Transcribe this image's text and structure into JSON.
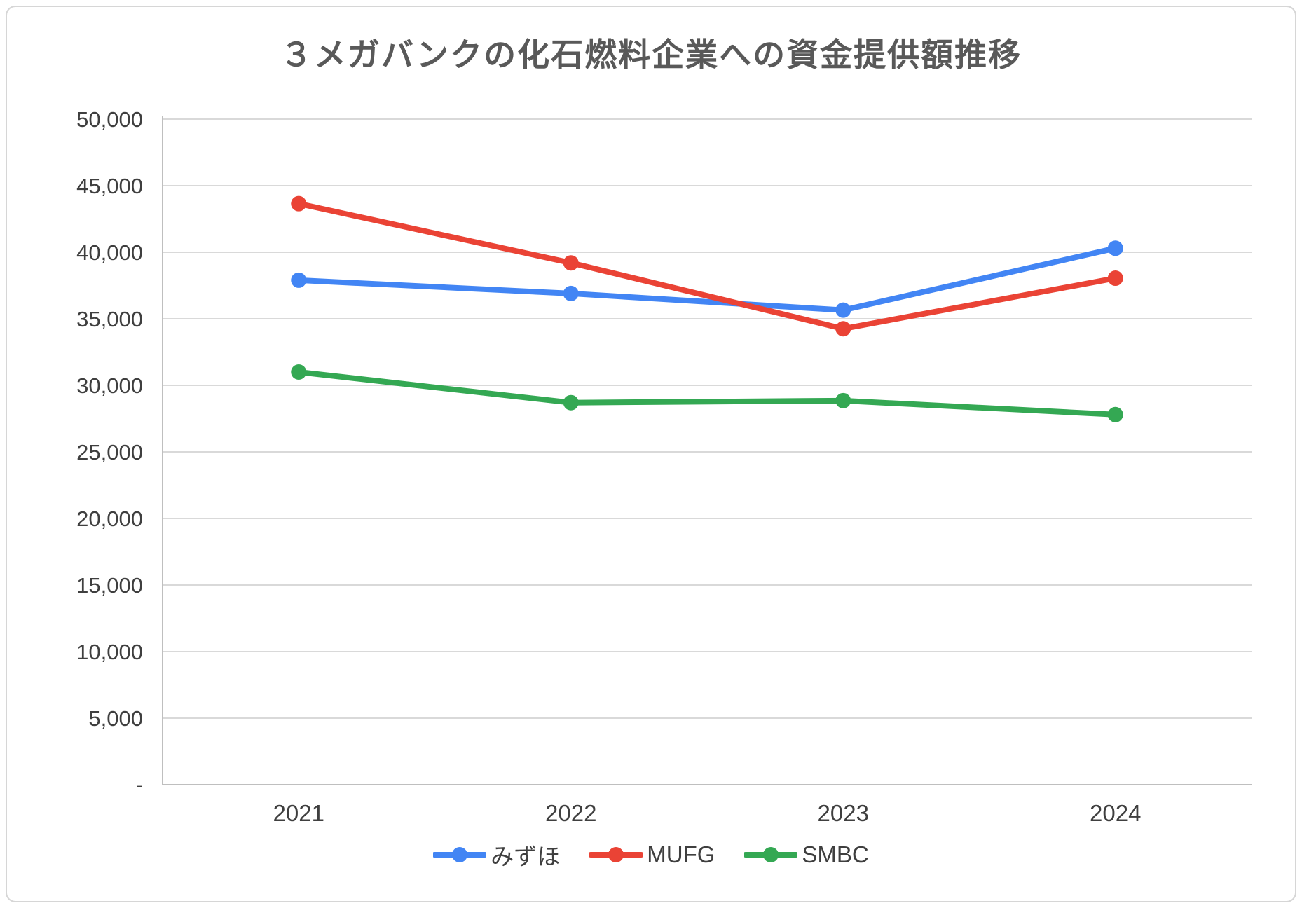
{
  "chart_data": {
    "type": "line",
    "title": "３メガバンクの化石燃料企業への資金提供額推移",
    "categories": [
      "2021",
      "2022",
      "2023",
      "2024"
    ],
    "series": [
      {
        "name": "みずほ",
        "color": "#4285F4",
        "values": [
          37900,
          36900,
          35650,
          40300
        ]
      },
      {
        "name": "MUFG",
        "color": "#EA4335",
        "values": [
          43650,
          39200,
          34250,
          38050
        ]
      },
      {
        "name": "SMBC",
        "color": "#34A853",
        "values": [
          31000,
          28700,
          28850,
          27800
        ]
      }
    ],
    "ylim": [
      0,
      50000
    ],
    "ytick_step": 5000,
    "ytick_labels": [
      "-",
      "5,000",
      "10,000",
      "15,000",
      "20,000",
      "25,000",
      "30,000",
      "35,000",
      "40,000",
      "45,000",
      "50,000"
    ],
    "grid": true,
    "legend_position": "bottom"
  },
  "styles": {
    "grid_color": "#d9d9d9",
    "axis_color": "#bfbfbf",
    "title_color": "#595959",
    "tick_color": "#3f3f3f",
    "background": "#ffffff",
    "frame_border": "#d6d6d6"
  }
}
